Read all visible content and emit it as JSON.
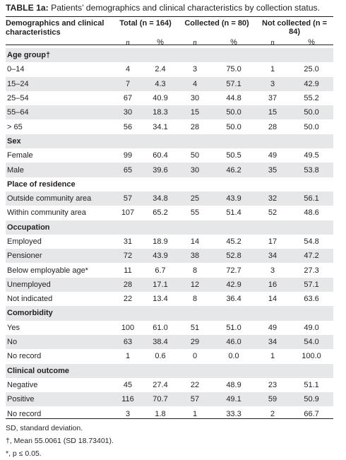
{
  "title": {
    "label": "TABLE 1a:",
    "text": "Patients’ demographics and clinical characteristics by collection status."
  },
  "table": {
    "columns": [
      "Demographics and clinical characteristics",
      "Total (n = 164)",
      "Collected (n = 80)",
      "Not collected (n = 84)"
    ],
    "subheaders": [
      "n",
      "%",
      "n",
      "%",
      "n",
      "%"
    ],
    "sections": [
      {
        "heading": "Age group†",
        "rows": [
          [
            "0–14",
            "4",
            "2.4",
            "3",
            "75.0",
            "1",
            "25.0"
          ],
          [
            "15–24",
            "7",
            "4.3",
            "4",
            "57.1",
            "3",
            "42.9"
          ],
          [
            "25–54",
            "67",
            "40.9",
            "30",
            "44.8",
            "37",
            "55.2"
          ],
          [
            "55–64",
            "30",
            "18.3",
            "15",
            "50.0",
            "15",
            "50.0"
          ],
          [
            "> 65",
            "56",
            "34.1",
            "28",
            "50.0",
            "28",
            "50.0"
          ]
        ]
      },
      {
        "heading": "Sex",
        "rows": [
          [
            "Female",
            "99",
            "60.4",
            "50",
            "50.5",
            "49",
            "49.5"
          ],
          [
            "Male",
            "65",
            "39.6",
            "30",
            "46.2",
            "35",
            "53.8"
          ]
        ]
      },
      {
        "heading": "Place of residence",
        "rows": [
          [
            "Outside community area",
            "57",
            "34.8",
            "25",
            "43.9",
            "32",
            "56.1"
          ],
          [
            "Within community area",
            "107",
            "65.2",
            "55",
            "51.4",
            "52",
            "48.6"
          ]
        ]
      },
      {
        "heading": "Occupation",
        "rows": [
          [
            "Employed",
            "31",
            "18.9",
            "14",
            "45.2",
            "17",
            "54.8"
          ],
          [
            "Pensioner",
            "72",
            "43.9",
            "38",
            "52.8",
            "34",
            "47.2"
          ],
          [
            "Below employable age*",
            "11",
            "6.7",
            "8",
            "72.7",
            "3",
            "27.3"
          ],
          [
            "Unemployed",
            "28",
            "17.1",
            "12",
            "42.9",
            "16",
            "57.1"
          ],
          [
            "Not indicated",
            "22",
            "13.4",
            "8",
            "36.4",
            "14",
            "63.6"
          ]
        ]
      },
      {
        "heading": "Comorbidity",
        "rows": [
          [
            "Yes",
            "100",
            "61.0",
            "51",
            "51.0",
            "49",
            "49.0"
          ],
          [
            "No",
            "63",
            "38.4",
            "29",
            "46.0",
            "34",
            "54.0"
          ],
          [
            "No record",
            "1",
            "0.6",
            "0",
            "0.0",
            "1",
            "100.0"
          ]
        ]
      },
      {
        "heading": "Clinical outcome",
        "rows": [
          [
            "Negative",
            "45",
            "27.4",
            "22",
            "48.9",
            "23",
            "51.1"
          ],
          [
            "Positive",
            "116",
            "70.7",
            "57",
            "49.1",
            "59",
            "50.9"
          ],
          [
            "No record",
            "3",
            "1.8",
            "1",
            "33.3",
            "2",
            "66.7"
          ]
        ]
      }
    ]
  },
  "footnotes": [
    "SD, standard deviation.",
    "†, Mean 55.0061 (SD 18.73401).",
    "*, p ≤ 0.05."
  ]
}
